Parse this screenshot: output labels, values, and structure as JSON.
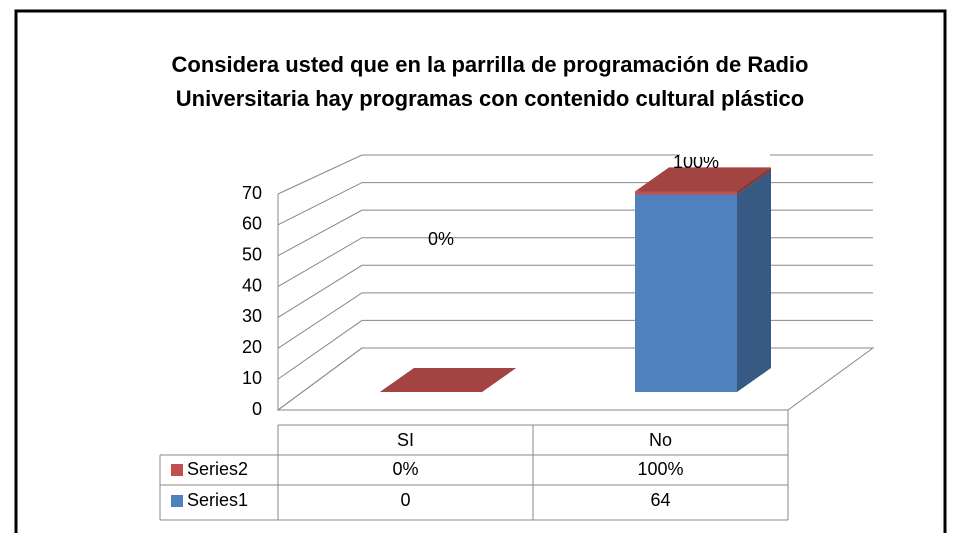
{
  "chart_data": {
    "type": "bar3d_stacked",
    "title": "Considera usted que  en la parrilla de programación de Radio Universitaria  hay programas con contenido cultural plástico",
    "categories": [
      "SI",
      "No"
    ],
    "series": [
      {
        "name": "Series1",
        "color": "#4f81bd",
        "values": [
          0,
          64
        ]
      },
      {
        "name": "Series2",
        "color": "#c0504d",
        "values": [
          0,
          1
        ],
        "value_labels": [
          "0%",
          "100%"
        ]
      }
    ],
    "ylim": [
      0,
      70
    ],
    "yticks": [
      0,
      10,
      20,
      30,
      40,
      50,
      60,
      70
    ],
    "grid": true,
    "data_table": true
  }
}
